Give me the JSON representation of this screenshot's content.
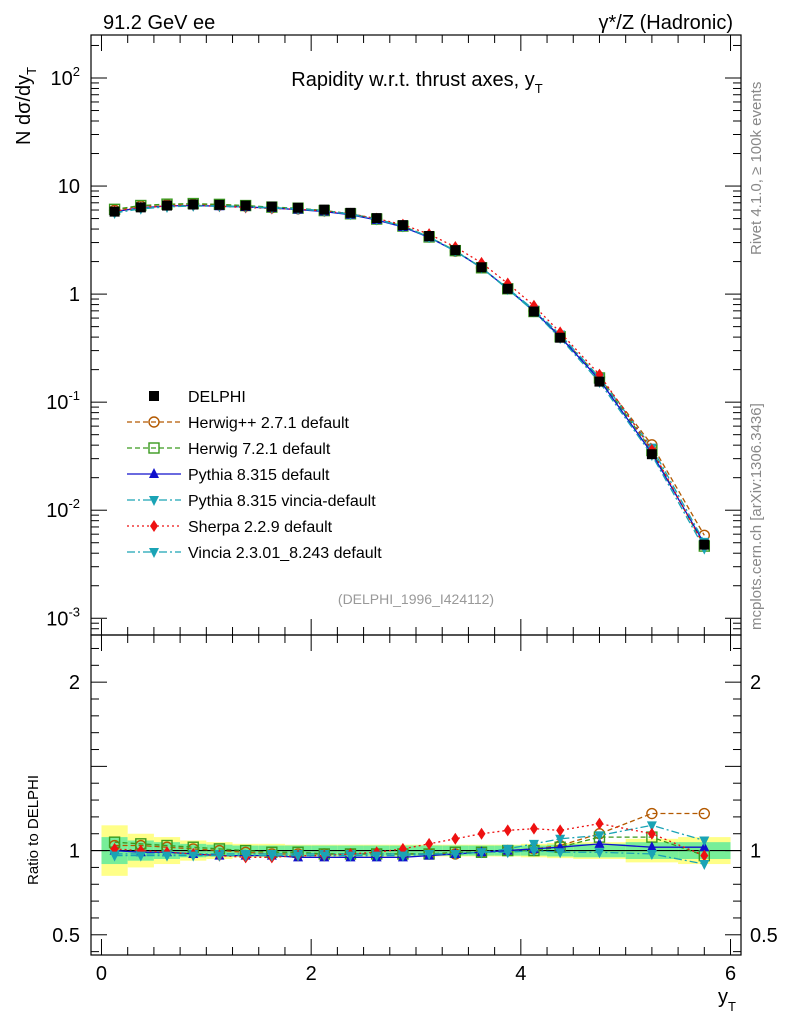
{
  "header": {
    "energy_label": "91.2 GeV ee",
    "process_label": "γ*/Z (Hadronic)",
    "rivet_label": "Rivet 4.1.0, ≥ 100k events",
    "mcplots_label": "mcplots.cern.ch [arXiv:1306.3436]"
  },
  "chart_data": {
    "type": "line",
    "title": "Rapidity w.r.t. thrust axes, y",
    "title_subscript": "T",
    "analysis_id": "(DELPHI_1996_I424112)",
    "xlabel": "y",
    "xlabel_subscript": "T",
    "ylabel_main": "N  dσ/dy",
    "ylabel_main_subscript": "T",
    "ylabel_ratio": "Ratio to DELPHI",
    "xlim": [
      -0.1,
      6.1
    ],
    "ylim_main": [
      0.0007,
      250
    ],
    "ylim_ratio": [
      0.38,
      2.28
    ],
    "x_ticks": [
      "0",
      "2",
      "4",
      "6"
    ],
    "y_ticks_main": [
      {
        "base": "10",
        "exp": "-3",
        "value": 0.001
      },
      {
        "base": "10",
        "exp": "-2",
        "value": 0.01
      },
      {
        "base": "10",
        "exp": "-1",
        "value": 0.1
      },
      {
        "base": "1",
        "exp": "",
        "value": 1
      },
      {
        "base": "10",
        "exp": "",
        "value": 10
      },
      {
        "base": "10",
        "exp": "2",
        "value": 100
      }
    ],
    "y_ticks_ratio": [
      "0.5",
      "1",
      "2"
    ],
    "x": [
      0.125,
      0.375,
      0.625,
      0.875,
      1.125,
      1.375,
      1.625,
      1.875,
      2.125,
      2.375,
      2.625,
      2.875,
      3.125,
      3.375,
      3.625,
      3.875,
      4.125,
      4.375,
      4.75,
      5.25,
      5.75
    ],
    "data": {
      "name": "DELPHI",
      "values": [
        5.8,
        6.35,
        6.6,
        6.75,
        6.7,
        6.6,
        6.45,
        6.3,
        6.05,
        5.65,
        5.05,
        4.35,
        3.45,
        2.55,
        1.77,
        1.12,
        0.69,
        0.395,
        0.155,
        0.033,
        0.0048
      ],
      "band_inner": [
        0.08,
        0.06,
        0.05,
        0.04,
        0.035,
        0.03,
        0.03,
        0.03,
        0.03,
        0.03,
        0.03,
        0.03,
        0.03,
        0.03,
        0.03,
        0.03,
        0.03,
        0.035,
        0.04,
        0.05,
        0.05
      ],
      "band_outer": [
        0.15,
        0.1,
        0.08,
        0.06,
        0.05,
        0.04,
        0.04,
        0.035,
        0.035,
        0.035,
        0.035,
        0.035,
        0.035,
        0.035,
        0.035,
        0.035,
        0.04,
        0.045,
        0.05,
        0.07,
        0.08
      ]
    },
    "series": [
      {
        "name": "Herwig++ 2.7.1 default",
        "color": "#b35900",
        "dash": "5,3",
        "marker": "circle-open",
        "ratio": [
          1.03,
          1.03,
          1.02,
          1.01,
          1.0,
          0.99,
          0.98,
          0.98,
          0.98,
          0.98,
          0.98,
          0.98,
          0.98,
          0.98,
          0.99,
          1.0,
          1.01,
          1.03,
          1.1,
          1.22,
          1.22
        ]
      },
      {
        "name": "Herwig 7.2.1 default",
        "color": "#3a9a1e",
        "dash": "5,3",
        "marker": "square-open",
        "ratio": [
          1.05,
          1.04,
          1.03,
          1.02,
          1.01,
          1.0,
          0.99,
          0.99,
          0.98,
          0.98,
          0.98,
          0.98,
          0.98,
          0.99,
          0.99,
          1.0,
          1.0,
          1.02,
          1.08,
          1.08,
          0.97
        ]
      },
      {
        "name": "Pythia 8.315 default",
        "color": "#1010cc",
        "dash": "",
        "marker": "triangle-up",
        "ratio": [
          1.0,
          0.99,
          0.99,
          0.98,
          0.97,
          0.97,
          0.97,
          0.96,
          0.96,
          0.96,
          0.96,
          0.96,
          0.97,
          0.98,
          0.99,
          1.0,
          1.01,
          1.02,
          1.04,
          1.02,
          1.02
        ]
      },
      {
        "name": "Pythia 8.315 vincia-default",
        "color": "#1aa3b5",
        "dash": "8,3,2,3",
        "marker": "triangle-down",
        "ratio": [
          0.98,
          0.98,
          0.98,
          0.98,
          0.98,
          0.98,
          0.98,
          0.98,
          0.98,
          0.98,
          0.98,
          0.98,
          0.98,
          0.98,
          0.99,
          1.01,
          1.04,
          1.07,
          1.09,
          1.15,
          1.06
        ]
      },
      {
        "name": "Sherpa 2.2.9 default",
        "color": "#ee1111",
        "dash": "2,3",
        "marker": "diamond",
        "ratio": [
          1.01,
          1.0,
          0.99,
          0.98,
          0.97,
          0.96,
          0.96,
          0.97,
          0.97,
          0.98,
          0.99,
          1.01,
          1.04,
          1.07,
          1.1,
          1.12,
          1.13,
          1.12,
          1.16,
          1.1,
          0.97
        ]
      },
      {
        "name": "Vincia 2.3.01_8.243 default",
        "color": "#1aa3b5",
        "dash": "8,3,2,3",
        "marker": "triangle-down",
        "ratio": [
          0.97,
          0.97,
          0.97,
          0.97,
          0.97,
          0.97,
          0.97,
          0.97,
          0.97,
          0.97,
          0.97,
          0.97,
          0.98,
          0.98,
          0.99,
          0.99,
          1.0,
          0.99,
          0.99,
          0.98,
          0.92
        ]
      }
    ]
  }
}
